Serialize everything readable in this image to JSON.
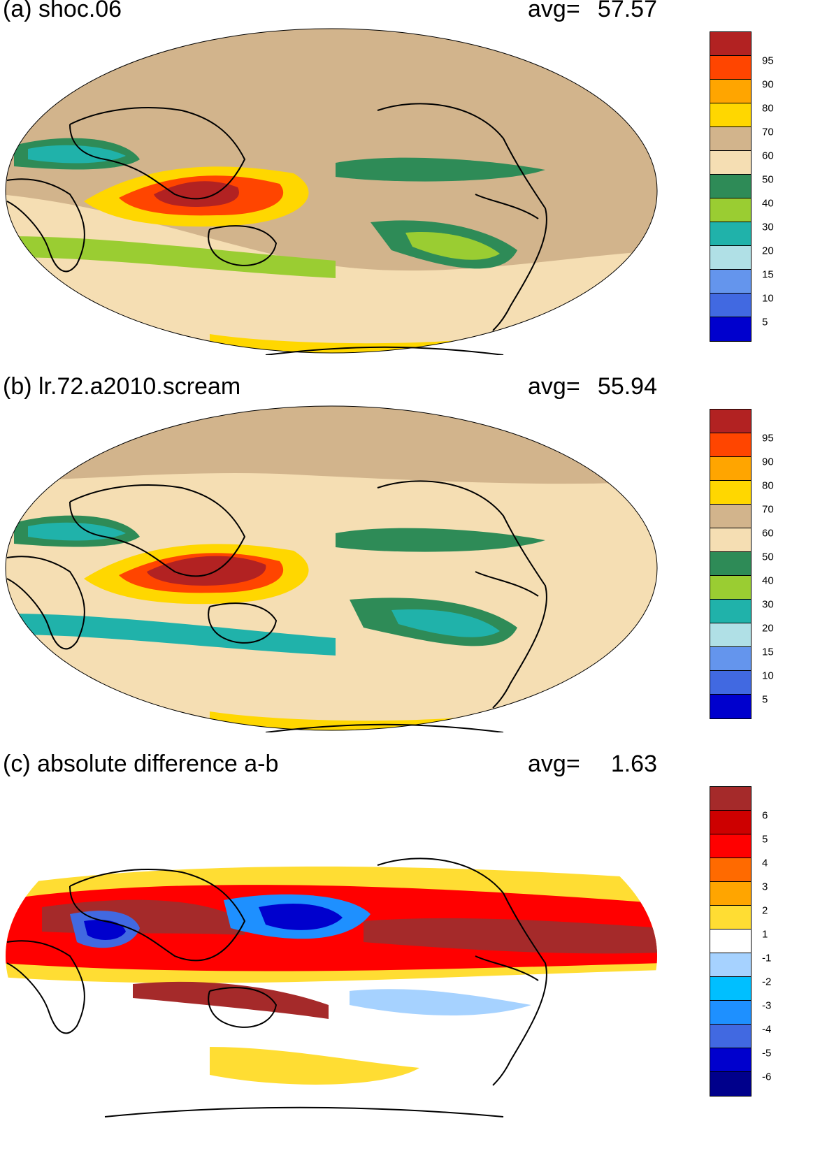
{
  "panels": [
    {
      "id": "a",
      "title": "(a) shoc.06",
      "avg_label": "avg=",
      "avg_value": "57.57",
      "colorbar": {
        "labels": [
          "95",
          "90",
          "80",
          "70",
          "60",
          "50",
          "40",
          "30",
          "20",
          "15",
          "10",
          "5"
        ],
        "colors": [
          "#b22222",
          "#ff4500",
          "#ffa500",
          "#ffd700",
          "#d2b48c",
          "#f5deb3",
          "#2e8b57",
          "#9acd32",
          "#20b2aa",
          "#b0e0e6",
          "#6495ed",
          "#4169e1",
          "#0000cd"
        ]
      }
    },
    {
      "id": "b",
      "title": "(b) lr.72.a2010.scream",
      "avg_label": "avg=",
      "avg_value": "55.94",
      "colorbar": {
        "labels": [
          "95",
          "90",
          "80",
          "70",
          "60",
          "50",
          "40",
          "30",
          "20",
          "15",
          "10",
          "5"
        ],
        "colors": [
          "#b22222",
          "#ff4500",
          "#ffa500",
          "#ffd700",
          "#d2b48c",
          "#f5deb3",
          "#2e8b57",
          "#9acd32",
          "#20b2aa",
          "#b0e0e6",
          "#6495ed",
          "#4169e1",
          "#0000cd"
        ]
      }
    },
    {
      "id": "c",
      "title": "(c) absolute difference a-b",
      "avg_label": "avg=",
      "avg_value": "1.63",
      "colorbar": {
        "labels": [
          "6",
          "5",
          "4",
          "3",
          "2",
          "1",
          "-1",
          "-2",
          "-3",
          "-4",
          "-5",
          "-6"
        ],
        "colors": [
          "#a52a2a",
          "#cd0000",
          "#ff0000",
          "#ff6a00",
          "#ffa500",
          "#ffdd33",
          "#ffffff",
          "#a6d2ff",
          "#00bfff",
          "#1e90ff",
          "#4169e1",
          "#0000cd",
          "#00008b"
        ]
      }
    }
  ]
}
